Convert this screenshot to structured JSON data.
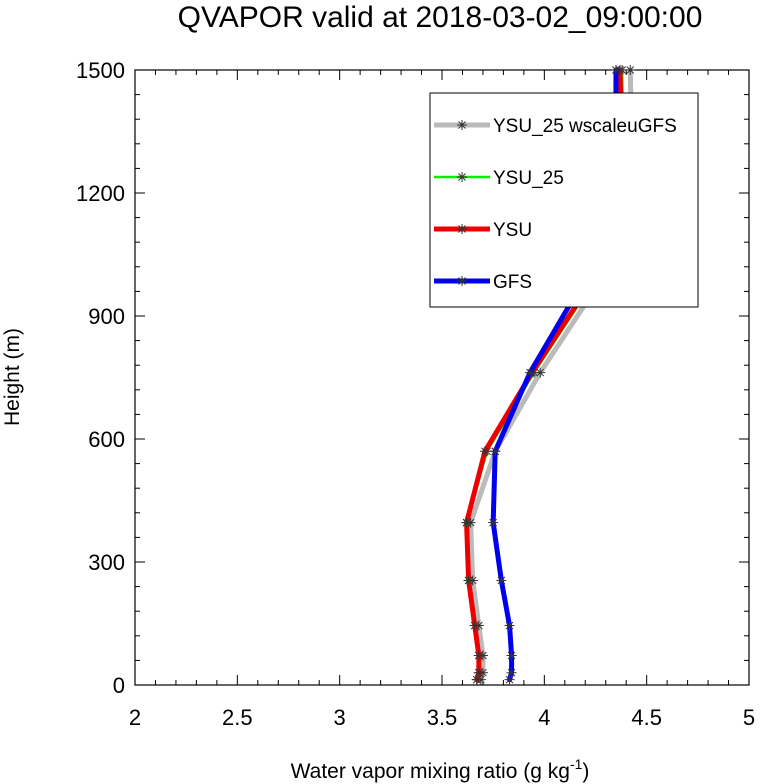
{
  "chart_data": {
    "type": "line",
    "title": "QVAPOR valid at 2018-03-02_09:00:00",
    "xlabel": "Water vapor mixing ratio (g kg",
    "xlabel_sup": "-1",
    "xlabel_end": ")",
    "ylabel": "Height (m)",
    "xlim": [
      2,
      5
    ],
    "ylim": [
      0,
      1500
    ],
    "xticks": [
      2,
      2.5,
      3,
      3.5,
      4,
      4.5,
      5
    ],
    "xtick_labels": [
      "2",
      "2.5",
      "3",
      "3.5",
      "4",
      "4.5",
      "5"
    ],
    "yticks": [
      0,
      300,
      600,
      900,
      1200,
      1500
    ],
    "ytick_labels": [
      "0",
      "300",
      "600",
      "900",
      "1200",
      "1500"
    ],
    "grid": false,
    "legend_position": "top-right",
    "series": [
      {
        "name": "YSU_25 wscaleuGFS",
        "color": "#bbbbbb",
        "marker": "asterisk",
        "points": [
          [
            3.69,
            13
          ],
          [
            3.7,
            30
          ],
          [
            3.7,
            72
          ],
          [
            3.68,
            145
          ],
          [
            3.65,
            255
          ],
          [
            3.64,
            396
          ],
          [
            3.76,
            570
          ],
          [
            3.98,
            762
          ],
          [
            4.26,
            975
          ],
          [
            4.43,
            1222
          ],
          [
            4.42,
            1500
          ]
        ]
      },
      {
        "name": "YSU_25",
        "color": "#00ee00",
        "marker": "asterisk",
        "points": [
          [
            3.67,
            13
          ],
          [
            3.68,
            30
          ],
          [
            3.68,
            72
          ],
          [
            3.66,
            145
          ],
          [
            3.63,
            255
          ],
          [
            3.62,
            396
          ],
          [
            3.72,
            570
          ],
          [
            3.95,
            762
          ],
          [
            4.23,
            975
          ],
          [
            4.39,
            1222
          ],
          [
            4.38,
            1500
          ]
        ]
      },
      {
        "name": "YSU",
        "color": "#ee0000",
        "marker": "asterisk",
        "points": [
          [
            3.67,
            13
          ],
          [
            3.68,
            30
          ],
          [
            3.68,
            72
          ],
          [
            3.66,
            145
          ],
          [
            3.63,
            255
          ],
          [
            3.62,
            396
          ],
          [
            3.71,
            570
          ],
          [
            3.94,
            762
          ],
          [
            4.22,
            975
          ],
          [
            4.38,
            1222
          ],
          [
            4.37,
            1500
          ]
        ]
      },
      {
        "name": "GFS",
        "color": "#0000ee",
        "marker": "asterisk",
        "points": [
          [
            3.83,
            13
          ],
          [
            3.84,
            30
          ],
          [
            3.84,
            72
          ],
          [
            3.83,
            145
          ],
          [
            3.79,
            255
          ],
          [
            3.75,
            396
          ],
          [
            3.76,
            570
          ],
          [
            3.93,
            762
          ],
          [
            4.18,
            975
          ],
          [
            4.35,
            1222
          ],
          [
            4.35,
            1500
          ]
        ]
      }
    ]
  }
}
